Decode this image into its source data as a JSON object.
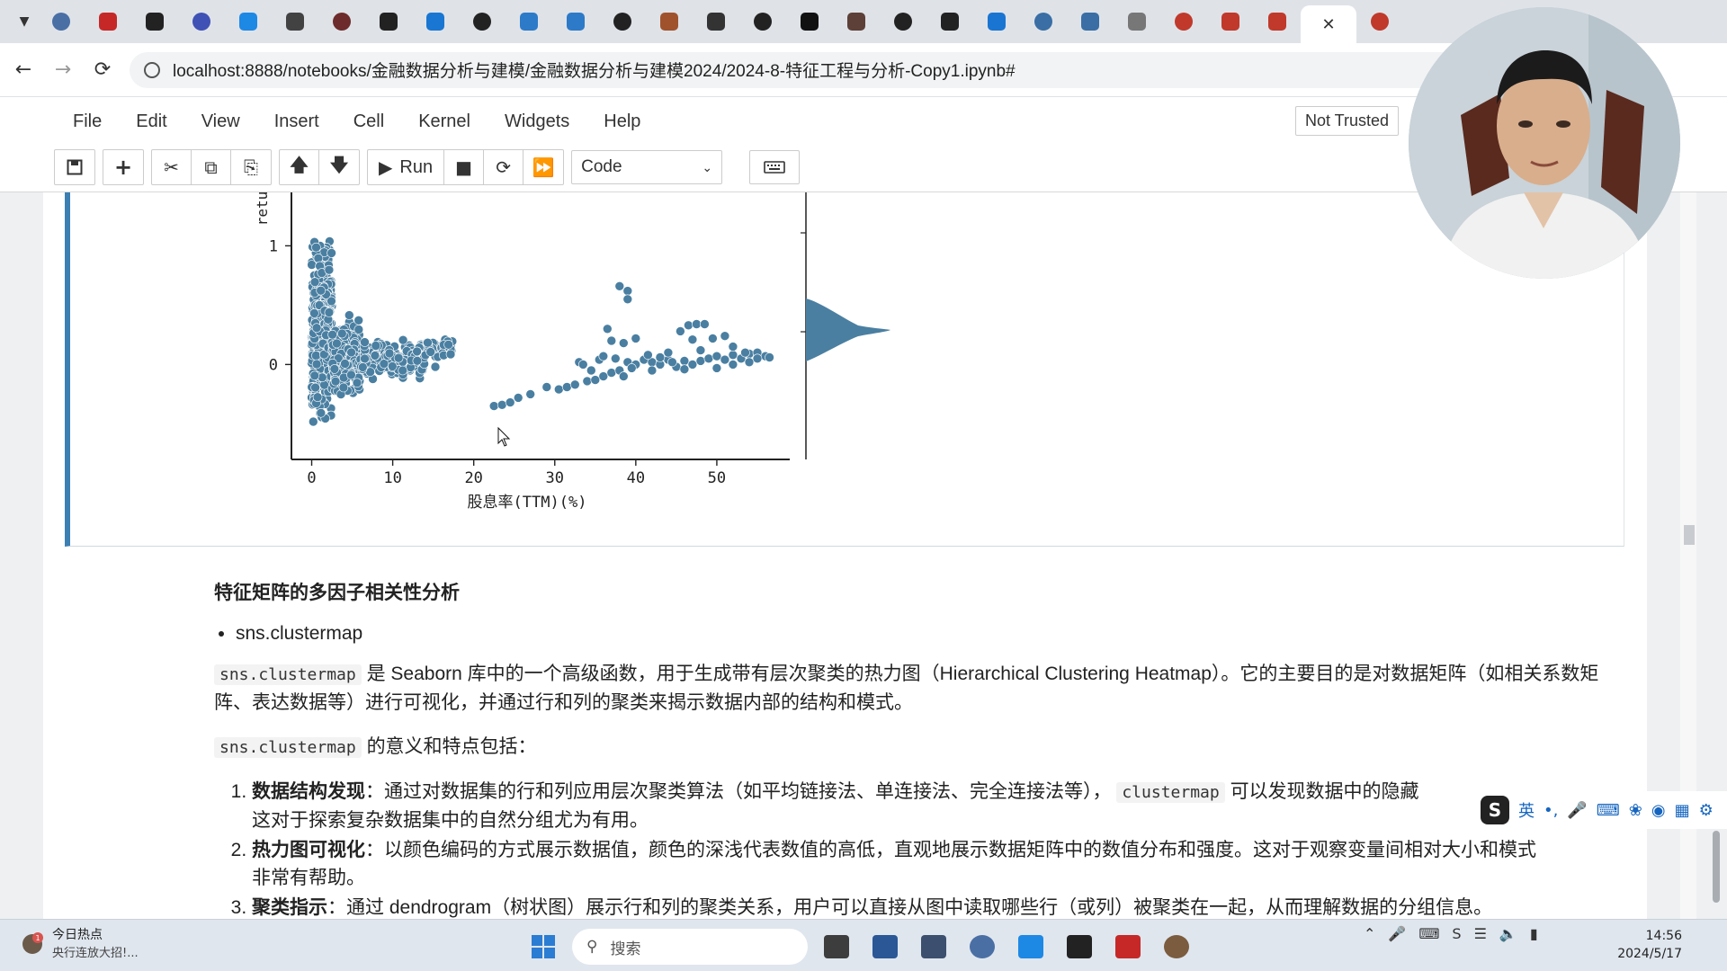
{
  "browser": {
    "address": "localhost:8888/notebooks/金融数据分析与建模/金融数据分析与建模2024/2024-8-特征工程与分析-Copy1.ipynb#",
    "tab_colors": [
      "#4a6fa5",
      "#c62828",
      "#222222",
      "#3f51b5",
      "#1e88e5",
      "#424242",
      "#6d2b2b",
      "#222222",
      "#1976d2",
      "#222222",
      "#2d7ac9",
      "#2d7ac9",
      "#222222",
      "#a0522d",
      "#333333",
      "#222222",
      "#111111",
      "#5d4037",
      "#222222",
      "#222222",
      "#1a75d2",
      "#3a6ea5",
      "#3a6ea5",
      "#777777",
      "#c0392b",
      "#c0392b",
      "#c0392b",
      "#c0392b"
    ]
  },
  "jupyter": {
    "menu": [
      "File",
      "Edit",
      "View",
      "Insert",
      "Cell",
      "Kernel",
      "Widgets",
      "Help"
    ],
    "trust": "Not Trusted",
    "run_label": "Run",
    "cell_type": "Code"
  },
  "chart_data": {
    "type": "scatter",
    "xlabel": "股息率(TTM)(%)",
    "ylabel": "retu",
    "x_ticks": [
      "0",
      "10",
      "20",
      "30",
      "40",
      "50"
    ],
    "y_ticks": [
      "1",
      "0"
    ],
    "xlim": [
      -2.5,
      59
    ],
    "ylim": [
      -0.8,
      1.45
    ],
    "point_color": "#4a7fa1",
    "clusters": [
      {
        "x": [
          0,
          2.5
        ],
        "y": [
          -0.6,
          1.15
        ],
        "n": 420
      },
      {
        "x": [
          2.5,
          6
        ],
        "y": [
          -0.35,
          0.45
        ],
        "n": 260
      },
      {
        "x": [
          6,
          14
        ],
        "y": [
          -0.15,
          0.25
        ],
        "n": 180
      },
      {
        "x": [
          14,
          17.5
        ],
        "y": [
          -0.05,
          0.3
        ],
        "n": 35
      }
    ],
    "points": [
      [
        22.5,
        -0.35
      ],
      [
        23.5,
        -0.34
      ],
      [
        24.5,
        -0.32
      ],
      [
        25.5,
        -0.28
      ],
      [
        27,
        -0.25
      ],
      [
        29,
        -0.19
      ],
      [
        30.5,
        -0.21
      ],
      [
        31.5,
        -0.19
      ],
      [
        32.5,
        -0.17
      ],
      [
        33,
        0.02
      ],
      [
        34,
        -0.14
      ],
      [
        35,
        -0.13
      ],
      [
        36,
        -0.1
      ],
      [
        37,
        -0.07
      ],
      [
        38,
        -0.05
      ],
      [
        38.5,
        -0.1
      ],
      [
        39,
        0.02
      ],
      [
        40,
        0.0
      ],
      [
        41,
        0.04
      ],
      [
        42,
        0.02
      ],
      [
        43,
        0.0
      ],
      [
        44,
        0.04
      ],
      [
        45,
        -0.02
      ],
      [
        46,
        0.03
      ],
      [
        47,
        0.0
      ],
      [
        48,
        0.03
      ],
      [
        49,
        0.05
      ],
      [
        50,
        0.07
      ],
      [
        51,
        0.04
      ],
      [
        52,
        0.08
      ],
      [
        53,
        0.05
      ],
      [
        54,
        0.09
      ],
      [
        55,
        0.1
      ],
      [
        56,
        0.07
      ],
      [
        33.5,
        0.0
      ],
      [
        35.5,
        0.04
      ],
      [
        36.5,
        0.3
      ],
      [
        37,
        0.2
      ],
      [
        38,
        0.66
      ],
      [
        39,
        0.62
      ],
      [
        39,
        0.55
      ],
      [
        38.5,
        0.18
      ],
      [
        40,
        0.22
      ],
      [
        36,
        0.07
      ],
      [
        37.5,
        0.05
      ],
      [
        41.5,
        0.08
      ],
      [
        43,
        0.06
      ],
      [
        44.5,
        0.02
      ],
      [
        45.5,
        0.28
      ],
      [
        46.5,
        0.33
      ],
      [
        47.5,
        0.34
      ],
      [
        48.5,
        0.34
      ],
      [
        47,
        0.21
      ],
      [
        49.5,
        0.22
      ],
      [
        51,
        0.24
      ],
      [
        52,
        0.15
      ],
      [
        53.5,
        0.1
      ],
      [
        55,
        0.05
      ],
      [
        42,
        -0.05
      ],
      [
        46,
        -0.04
      ],
      [
        50,
        -0.03
      ],
      [
        34.5,
        -0.05
      ],
      [
        39.5,
        -0.03
      ],
      [
        44,
        0.1
      ],
      [
        48,
        0.12
      ],
      [
        52,
        0.0
      ],
      [
        54,
        0.02
      ],
      [
        56.5,
        0.06
      ]
    ],
    "marginal": "kde-right"
  },
  "markdown": {
    "heading": "特征矩阵的多因子相关性分析",
    "bullet": "sns.clustermap",
    "code_term": "sns.clustermap",
    "code_term_short": "clustermap",
    "p1": "是 Seaborn 库中的一个高级函数，用于生成带有层次聚类的热力图（Hierarchical Clustering Heatmap）。它的主要目的是对数据矩阵（如相关系数矩阵、表达数据等）进行可视化，并通过行和列的聚类来揭示数据内部的结构和模式。",
    "p2": "的意义和特点包括：",
    "items": [
      {
        "bold": "数据结构发现",
        "pre": "：通过对数据集的行和列应用层次聚类算法（如平均链接法、单连接法、完全连接法等），",
        "post": "可以发现数据中的隐藏",
        "line2": "这对于探索复杂数据集中的自然分组尤为有用。"
      },
      {
        "bold": "热力图可视化",
        "pre": "：以颜色编码的方式展示数据值，颜色的深浅代表数值的高低，直观地展示数据矩阵中的数值分布和强度。这对于观察变量间相对大小和模式",
        "line2": "非常有帮助。"
      },
      {
        "bold": "聚类指示",
        "pre": "：通过 dendrogram（树状图）展示行和列的聚类关系，用户可以直接从图中读取哪些行（或列）被聚类在一起，从而理解数据的分组信息。"
      }
    ]
  },
  "ime": {
    "lang": "英"
  },
  "taskbar": {
    "news_title": "今日热点",
    "news_sub": "央行连放大招!...",
    "search": "搜索",
    "time": "14:56",
    "date": "2024/5/17",
    "icon_colors": [
      "#2f6fdc",
      "#3d3d3d",
      "#2b5797",
      "#3c4f6e",
      "#4a6fa5",
      "#1e88e5",
      "#222222",
      "#c62828",
      "#7b5c3e"
    ]
  }
}
